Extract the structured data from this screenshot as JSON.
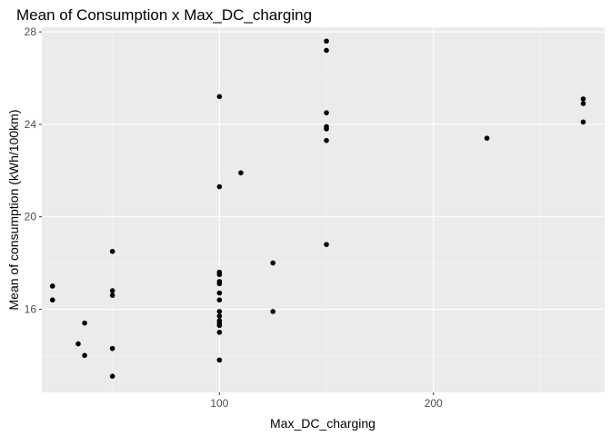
{
  "chart_data": {
    "type": "scatter",
    "title": "Mean of Consumption x Max_DC_charging",
    "xlabel": "Max_DC_charging",
    "ylabel": "Mean of consumption (kWh/100km)",
    "xlim": [
      17,
      280
    ],
    "ylim": [
      12.4,
      28.2
    ],
    "x_ticks": [
      100,
      200
    ],
    "y_ticks": [
      16,
      20,
      24,
      28
    ],
    "grid": true,
    "legend": "none",
    "colors": {
      "panel": "#ebebeb",
      "grid_major": "#ffffff",
      "grid_minor": "#f5f5f5",
      "point": "#000000"
    },
    "points": [
      {
        "x": 22,
        "y": 17.0
      },
      {
        "x": 22,
        "y": 16.4
      },
      {
        "x": 34,
        "y": 14.5
      },
      {
        "x": 37,
        "y": 15.4
      },
      {
        "x": 37,
        "y": 14.0
      },
      {
        "x": 50,
        "y": 18.5
      },
      {
        "x": 50,
        "y": 16.8
      },
      {
        "x": 50,
        "y": 16.6
      },
      {
        "x": 50,
        "y": 14.3
      },
      {
        "x": 50,
        "y": 13.1
      },
      {
        "x": 100,
        "y": 25.2
      },
      {
        "x": 100,
        "y": 21.3
      },
      {
        "x": 100,
        "y": 17.6
      },
      {
        "x": 100,
        "y": 17.5
      },
      {
        "x": 100,
        "y": 17.2
      },
      {
        "x": 100,
        "y": 17.1
      },
      {
        "x": 100,
        "y": 16.7
      },
      {
        "x": 100,
        "y": 16.4
      },
      {
        "x": 100,
        "y": 15.9
      },
      {
        "x": 100,
        "y": 15.7
      },
      {
        "x": 100,
        "y": 15.5
      },
      {
        "x": 100,
        "y": 15.4
      },
      {
        "x": 100,
        "y": 15.3
      },
      {
        "x": 100,
        "y": 15.0
      },
      {
        "x": 100,
        "y": 13.8
      },
      {
        "x": 110,
        "y": 21.9
      },
      {
        "x": 125,
        "y": 18.0
      },
      {
        "x": 125,
        "y": 15.9
      },
      {
        "x": 150,
        "y": 27.6
      },
      {
        "x": 150,
        "y": 27.2
      },
      {
        "x": 150,
        "y": 24.5
      },
      {
        "x": 150,
        "y": 23.9
      },
      {
        "x": 150,
        "y": 23.8
      },
      {
        "x": 150,
        "y": 23.3
      },
      {
        "x": 150,
        "y": 18.8
      },
      {
        "x": 225,
        "y": 23.4
      },
      {
        "x": 270,
        "y": 25.1
      },
      {
        "x": 270,
        "y": 24.9
      },
      {
        "x": 270,
        "y": 24.1
      }
    ]
  }
}
